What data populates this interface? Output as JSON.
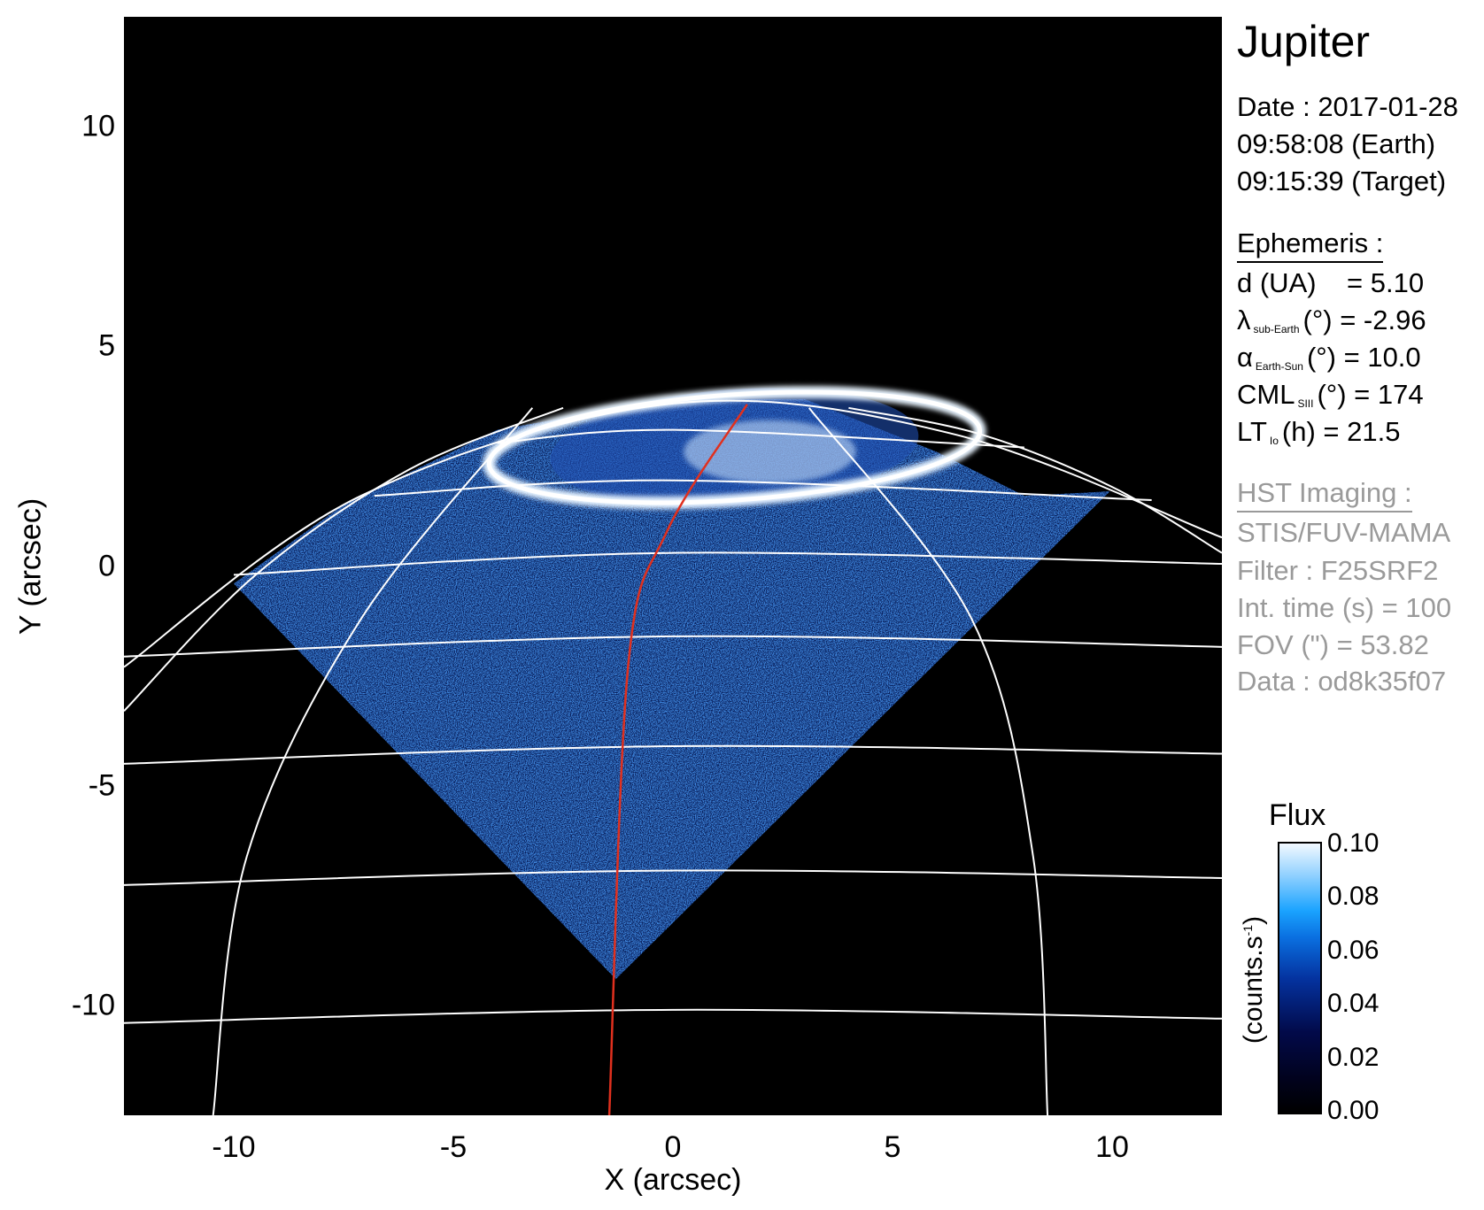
{
  "chart_data": {
    "type": "heatmap",
    "title": "Jupiter",
    "xlabel": "X (arcsec)",
    "ylabel": "Y (arcsec)",
    "xlim": [
      -12.5,
      12.5
    ],
    "ylim": [
      -12.5,
      12.5
    ],
    "xticks": [
      "-10",
      "-5",
      "0",
      "5",
      "10"
    ],
    "yticks": [
      "10",
      "5",
      "0",
      "-5",
      "-10"
    ],
    "xtick_values": [
      -10,
      -5,
      0,
      5,
      10
    ],
    "ytick_values": [
      10,
      5,
      0,
      -5,
      -10
    ],
    "colormap": {
      "title": "Flux",
      "label": "(counts.s",
      "label_sup": "-1",
      "label_end": ")",
      "range": [
        0.0,
        0.1
      ],
      "ticks": [
        "0.10",
        "0.08",
        "0.06",
        "0.04",
        "0.02",
        "0.00"
      ],
      "tick_values": [
        0.1,
        0.08,
        0.06,
        0.04,
        0.02,
        0.0
      ],
      "colors": [
        "#000000",
        "#020a4a",
        "#0433a0",
        "#1aa3ff",
        "#f2f9ff"
      ]
    },
    "image_footprint": [
      [
        -10.0,
        -0.4
      ],
      [
        -1.3,
        -9.4
      ],
      [
        9.95,
        1.7
      ],
      [
        8.0,
        1.6
      ],
      [
        6.0,
        2.6
      ],
      [
        3.0,
        3.8
      ],
      [
        0.0,
        3.8
      ],
      [
        -4.0,
        3.1
      ],
      [
        -7.5,
        1.4
      ]
    ],
    "auroral_oval": {
      "center": [
        1.4,
        2.7
      ],
      "rx": 5.6,
      "ry": 1.2,
      "tilt_deg": -4
    },
    "limb": [
      [
        -12.5,
        -2.3
      ],
      [
        -7.1,
        1.6
      ],
      [
        0,
        3.7
      ],
      [
        6.4,
        3.0
      ],
      [
        12.5,
        0.65
      ]
    ],
    "parallels": [
      [
        [
          -12.5,
          -10.4
        ],
        [
          0,
          -10.1
        ],
        [
          12.5,
          -10.3
        ]
      ],
      [
        [
          -12.5,
          -7.26
        ],
        [
          0,
          -6.93
        ],
        [
          12.5,
          -7.1
        ]
      ],
      [
        [
          -12.5,
          -4.5
        ],
        [
          0,
          -4.1
        ],
        [
          12.5,
          -4.27
        ]
      ],
      [
        [
          -12.5,
          -2.06
        ],
        [
          0,
          -1.6
        ],
        [
          12.5,
          -1.84
        ]
      ],
      [
        [
          -10.0,
          -0.2
        ],
        [
          0,
          0.3
        ],
        [
          12.5,
          0.05
        ]
      ],
      [
        [
          -6.8,
          1.6
        ],
        [
          0,
          1.95
        ],
        [
          10.9,
          1.5
        ]
      ],
      [
        [
          -4.0,
          2.8
        ],
        [
          0,
          3.1
        ],
        [
          8.0,
          2.7
        ]
      ]
    ],
    "meridians": [
      [
        [
          -10.47,
          -12.5
        ],
        [
          -9.7,
          -6.6
        ],
        [
          -7.1,
          -1.2
        ],
        [
          -3.2,
          3.6
        ]
      ],
      [
        [
          8.53,
          -12.5
        ],
        [
          8.2,
          -6.6
        ],
        [
          6.8,
          -1.2
        ],
        [
          3.1,
          3.6
        ]
      ],
      [
        [
          -12.5,
          -3.3
        ],
        [
          -9.5,
          -0.2
        ],
        [
          -6.0,
          2.2
        ],
        [
          -2.5,
          3.6
        ]
      ],
      [
        [
          12.5,
          0.3
        ],
        [
          10.0,
          1.8
        ],
        [
          7.0,
          3.0
        ],
        [
          4.0,
          3.6
        ]
      ]
    ],
    "central_meridian": {
      "color": "#e0301e",
      "points": [
        [
          -1.45,
          -12.5
        ],
        [
          -1.02,
          -2.28
        ],
        [
          -0.15,
          0.76
        ],
        [
          1.69,
          3.68
        ]
      ]
    }
  },
  "info": {
    "title": "Jupiter",
    "date": "Date : 2017-01-28",
    "earth_time": "09:58:08 (Earth)",
    "target_time": "09:15:39 (Target)",
    "ephemeris_header": "Ephemeris :",
    "ephemeris": {
      "d": {
        "label": "d (UA)",
        "value": "= 5.10"
      },
      "lambda": {
        "symbol": "λ",
        "sub": "sub-Earth",
        "rest": "(°) = -2.96"
      },
      "alpha": {
        "symbol": "α",
        "sub": "Earth-Sun",
        "rest": "(°) = 10.0"
      },
      "cml": {
        "symbol": "CML",
        "sub": "SIII",
        "rest": "(°) = 174"
      },
      "lt": {
        "symbol": "LT",
        "sub": "Io",
        "rest": "(h) = 21.5"
      }
    },
    "hst_header": "HST Imaging :",
    "instrument": "STIS/FUV-MAMA",
    "filter": "Filter : F25SRF2",
    "int_time": "Int. time (s) = 100",
    "fov": "FOV (\") = 53.82",
    "data_id": "Data : od8k35f07"
  }
}
